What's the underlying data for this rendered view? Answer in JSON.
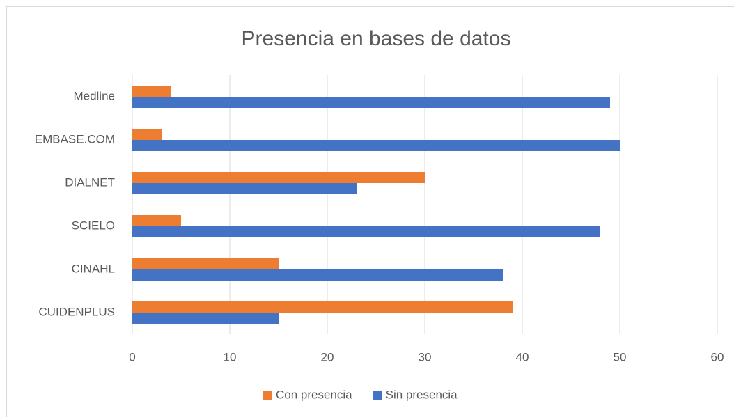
{
  "chart_data": {
    "type": "bar",
    "orientation": "horizontal",
    "title": "Presencia en bases de datos",
    "categories": [
      "Medline",
      "EMBASE.COM",
      "DIALNET",
      "SCIELO",
      "CINAHL",
      "CUIDENPLUS"
    ],
    "series": [
      {
        "name": "Con presencia",
        "color": "#ed7d31",
        "values": [
          4,
          3,
          30,
          5,
          15,
          39
        ]
      },
      {
        "name": "Sin presencia",
        "color": "#4472c4",
        "values": [
          49,
          50,
          23,
          48,
          38,
          15
        ]
      }
    ],
    "xlim": [
      0,
      60
    ],
    "xticks": [
      0,
      10,
      20,
      30,
      40,
      50,
      60
    ],
    "grid": true,
    "legend": "bottom"
  }
}
